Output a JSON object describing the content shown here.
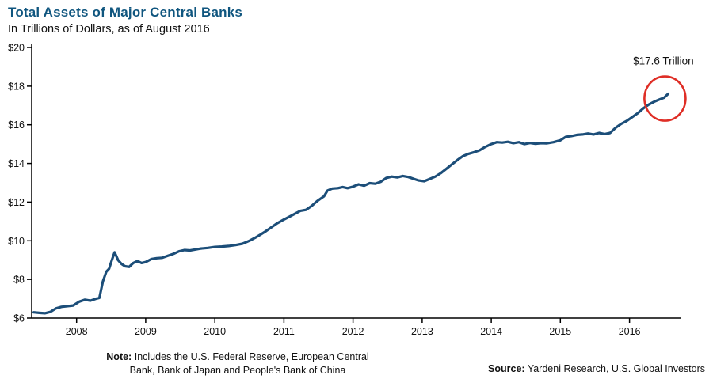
{
  "header": {
    "title": "Total Assets of Major Central Banks",
    "subtitle": "In Trillions of Dollars, as of August 2016"
  },
  "footer": {
    "note_label": "Note:",
    "note_line1": "Includes the U.S. Federal Reserve, European Central",
    "note_line2": "Bank, Bank of Japan and People's Bank of China",
    "source_label": "Source:",
    "source_text": "Yardeni Research, U.S. Global Investors"
  },
  "chart_data": {
    "type": "line",
    "title": "Total Assets of Major Central Banks",
    "subtitle": "In Trillions of Dollars, as of August 2016",
    "xlabel": "",
    "ylabel": "Trillions of Dollars",
    "xlim": [
      2007.35,
      2016.75
    ],
    "ylim": [
      6,
      20
    ],
    "grid": false,
    "legend": "none",
    "y_ticks": [
      6,
      8,
      10,
      12,
      14,
      16,
      18,
      20
    ],
    "y_tick_labels": [
      "$6",
      "$8",
      "$10",
      "$12",
      "$14",
      "$16",
      "$18",
      "$20"
    ],
    "x_ticks": [
      2008,
      2009,
      2010,
      2011,
      2012,
      2013,
      2014,
      2015,
      2016
    ],
    "x_tick_labels": [
      "2008",
      "2009",
      "2010",
      "2011",
      "2012",
      "2013",
      "2014",
      "2015",
      "2016"
    ],
    "annotation": {
      "text": "$17.6 Trillion",
      "x": 2016.56,
      "y": 17.6,
      "circle_color": "#df2e26"
    },
    "series": [
      {
        "name": "Total assets of major central banks",
        "color": "#1c4e79",
        "points": [
          [
            2007.38,
            6.3
          ],
          [
            2007.46,
            6.27
          ],
          [
            2007.54,
            6.25
          ],
          [
            2007.62,
            6.32
          ],
          [
            2007.7,
            6.5
          ],
          [
            2007.78,
            6.58
          ],
          [
            2007.87,
            6.62
          ],
          [
            2007.95,
            6.65
          ],
          [
            2008.04,
            6.85
          ],
          [
            2008.12,
            6.95
          ],
          [
            2008.2,
            6.9
          ],
          [
            2008.28,
            7.0
          ],
          [
            2008.33,
            7.05
          ],
          [
            2008.38,
            7.9
          ],
          [
            2008.43,
            8.4
          ],
          [
            2008.47,
            8.55
          ],
          [
            2008.51,
            9.0
          ],
          [
            2008.55,
            9.4
          ],
          [
            2008.6,
            9.0
          ],
          [
            2008.65,
            8.8
          ],
          [
            2008.7,
            8.68
          ],
          [
            2008.76,
            8.65
          ],
          [
            2008.82,
            8.85
          ],
          [
            2008.88,
            8.95
          ],
          [
            2008.94,
            8.85
          ],
          [
            2009.0,
            8.9
          ],
          [
            2009.08,
            9.05
          ],
          [
            2009.16,
            9.1
          ],
          [
            2009.24,
            9.12
          ],
          [
            2009.32,
            9.22
          ],
          [
            2009.4,
            9.32
          ],
          [
            2009.48,
            9.45
          ],
          [
            2009.56,
            9.52
          ],
          [
            2009.64,
            9.5
          ],
          [
            2009.72,
            9.55
          ],
          [
            2009.8,
            9.6
          ],
          [
            2009.9,
            9.63
          ],
          [
            2010.0,
            9.68
          ],
          [
            2010.1,
            9.7
          ],
          [
            2010.2,
            9.73
          ],
          [
            2010.3,
            9.78
          ],
          [
            2010.4,
            9.85
          ],
          [
            2010.5,
            10.0
          ],
          [
            2010.58,
            10.15
          ],
          [
            2010.66,
            10.32
          ],
          [
            2010.74,
            10.5
          ],
          [
            2010.82,
            10.7
          ],
          [
            2010.9,
            10.9
          ],
          [
            2011.0,
            11.1
          ],
          [
            2011.08,
            11.25
          ],
          [
            2011.16,
            11.4
          ],
          [
            2011.24,
            11.55
          ],
          [
            2011.32,
            11.6
          ],
          [
            2011.4,
            11.8
          ],
          [
            2011.48,
            12.05
          ],
          [
            2011.54,
            12.2
          ],
          [
            2011.58,
            12.3
          ],
          [
            2011.63,
            12.6
          ],
          [
            2011.7,
            12.7
          ],
          [
            2011.78,
            12.72
          ],
          [
            2011.85,
            12.78
          ],
          [
            2011.92,
            12.72
          ],
          [
            2012.0,
            12.8
          ],
          [
            2012.08,
            12.92
          ],
          [
            2012.16,
            12.85
          ],
          [
            2012.24,
            12.98
          ],
          [
            2012.32,
            12.95
          ],
          [
            2012.4,
            13.05
          ],
          [
            2012.48,
            13.25
          ],
          [
            2012.56,
            13.32
          ],
          [
            2012.64,
            13.28
          ],
          [
            2012.72,
            13.35
          ],
          [
            2012.8,
            13.3
          ],
          [
            2012.88,
            13.2
          ],
          [
            2012.95,
            13.12
          ],
          [
            2013.03,
            13.08
          ],
          [
            2013.11,
            13.2
          ],
          [
            2013.19,
            13.32
          ],
          [
            2013.27,
            13.5
          ],
          [
            2013.35,
            13.72
          ],
          [
            2013.43,
            13.95
          ],
          [
            2013.51,
            14.18
          ],
          [
            2013.59,
            14.38
          ],
          [
            2013.67,
            14.5
          ],
          [
            2013.75,
            14.58
          ],
          [
            2013.83,
            14.68
          ],
          [
            2013.91,
            14.85
          ],
          [
            2014.0,
            15.0
          ],
          [
            2014.08,
            15.1
          ],
          [
            2014.16,
            15.08
          ],
          [
            2014.24,
            15.12
          ],
          [
            2014.32,
            15.05
          ],
          [
            2014.4,
            15.1
          ],
          [
            2014.48,
            15.0
          ],
          [
            2014.56,
            15.06
          ],
          [
            2014.64,
            15.02
          ],
          [
            2014.72,
            15.05
          ],
          [
            2014.8,
            15.04
          ],
          [
            2014.9,
            15.1
          ],
          [
            2015.0,
            15.2
          ],
          [
            2015.08,
            15.38
          ],
          [
            2015.16,
            15.42
          ],
          [
            2015.24,
            15.48
          ],
          [
            2015.32,
            15.5
          ],
          [
            2015.4,
            15.55
          ],
          [
            2015.48,
            15.5
          ],
          [
            2015.56,
            15.58
          ],
          [
            2015.64,
            15.52
          ],
          [
            2015.72,
            15.58
          ],
          [
            2015.8,
            15.85
          ],
          [
            2015.88,
            16.05
          ],
          [
            2015.96,
            16.2
          ],
          [
            2016.04,
            16.4
          ],
          [
            2016.12,
            16.6
          ],
          [
            2016.2,
            16.85
          ],
          [
            2016.28,
            17.05
          ],
          [
            2016.36,
            17.2
          ],
          [
            2016.44,
            17.32
          ],
          [
            2016.5,
            17.4
          ],
          [
            2016.56,
            17.6
          ]
        ]
      }
    ]
  }
}
